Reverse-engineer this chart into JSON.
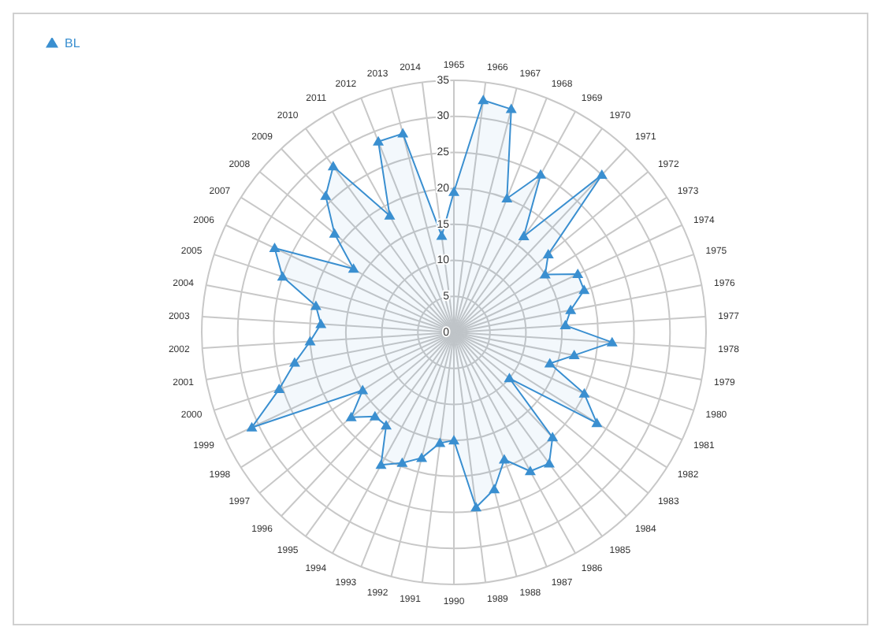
{
  "chart_data": {
    "type": "radar",
    "categories": [
      "1965",
      "1966",
      "1967",
      "1968",
      "1969",
      "1970",
      "1971",
      "1972",
      "1973",
      "1974",
      "1975",
      "1976",
      "1977",
      "1978",
      "1979",
      "1980",
      "1981",
      "1982",
      "1983",
      "1984",
      "1985",
      "1986",
      "1987",
      "1988",
      "1989",
      "1990",
      "1991",
      "1992",
      "1993",
      "1994",
      "1995",
      "1996",
      "1997",
      "1998",
      "1999",
      "2000",
      "2001",
      "2002",
      "2003",
      "2004",
      "2005",
      "2006",
      "2007",
      "2008",
      "2009",
      "2010",
      "2011",
      "2012",
      "2013",
      "2014"
    ],
    "series": [
      {
        "name": "BL",
        "color": "#3a8fd0",
        "values": [
          19.5,
          32.5,
          32,
          20,
          25,
          16.5,
          30,
          17,
          15,
          19,
          19,
          16.5,
          15.5,
          22,
          17,
          14,
          20,
          23.5,
          10,
          20,
          22.5,
          22,
          19,
          22.5,
          24.5,
          15,
          15.5,
          18,
          19.5,
          21,
          16,
          16,
          18.5,
          15,
          31,
          25.5,
          22.5,
          20,
          18.5,
          19.5,
          25,
          27.5,
          16.5,
          21.5,
          26,
          28.5,
          18.5,
          28.5,
          28.5,
          13.5
        ]
      }
    ],
    "ylim": [
      0,
      35
    ],
    "yticks": [
      0,
      5,
      10,
      15,
      20,
      25,
      30,
      35
    ],
    "grid": true,
    "legend": "top left",
    "marker": "triangle"
  }
}
